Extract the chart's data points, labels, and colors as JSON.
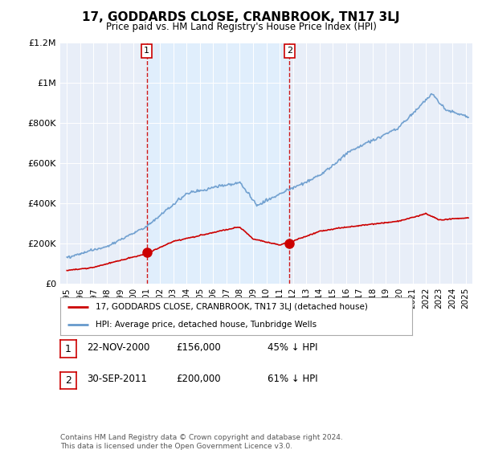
{
  "title": "17, GODDARDS CLOSE, CRANBROOK, TN17 3LJ",
  "subtitle": "Price paid vs. HM Land Registry's House Price Index (HPI)",
  "hpi_label": "HPI: Average price, detached house, Tunbridge Wells",
  "sale_label": "17, GODDARDS CLOSE, CRANBROOK, TN17 3LJ (detached house)",
  "sale_color": "#cc0000",
  "hpi_color": "#6699cc",
  "vline_color": "#cc0000",
  "sale_fill_color": "#ddeeff",
  "sale1_date": 2001.0,
  "sale1_price": 156000,
  "sale2_date": 2011.75,
  "sale2_price": 200000,
  "sale1_label": "22-NOV-2000",
  "sale1_amount": "£156,000",
  "sale1_pct": "45% ↓ HPI",
  "sale2_label": "30-SEP-2011",
  "sale2_amount": "£200,000",
  "sale2_pct": "61% ↓ HPI",
  "ylim": [
    0,
    1200000
  ],
  "xlim_start": 1994.5,
  "xlim_end": 2025.5,
  "yticks": [
    0,
    200000,
    400000,
    600000,
    800000,
    1000000,
    1200000
  ],
  "ytick_labels": [
    "£0",
    "£200K",
    "£400K",
    "£600K",
    "£800K",
    "£1M",
    "£1.2M"
  ],
  "footer": "Contains HM Land Registry data © Crown copyright and database right 2024.\nThis data is licensed under the Open Government Licence v3.0.",
  "background_color": "#ffffff",
  "plot_bg_color": "#e8eef8"
}
